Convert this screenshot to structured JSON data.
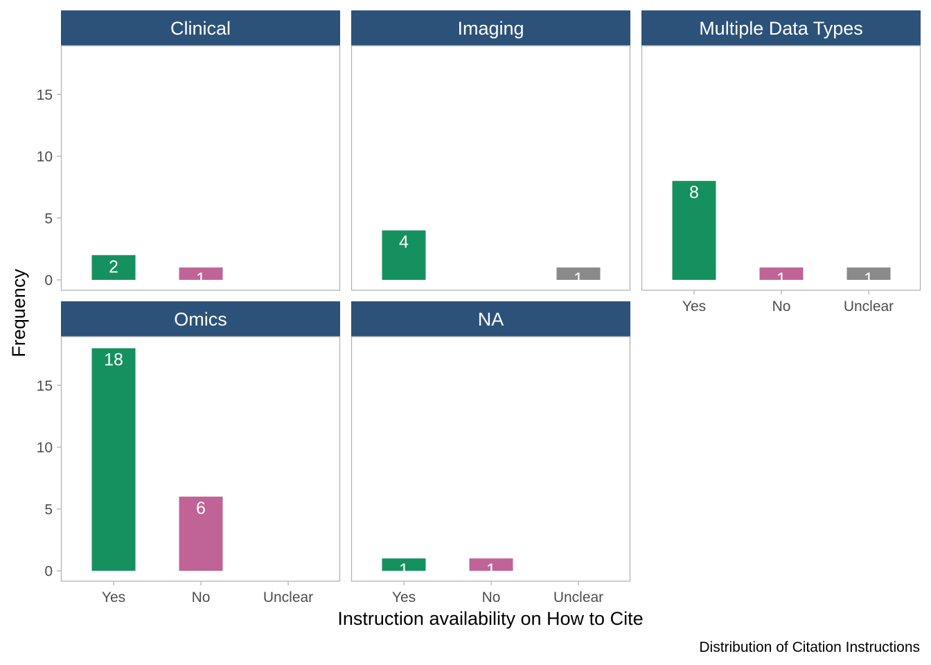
{
  "chart_data": {
    "type": "bar",
    "facets": [
      {
        "name": "Clinical",
        "values": [
          2,
          1,
          0
        ]
      },
      {
        "name": "Imaging",
        "values": [
          4,
          0,
          1
        ]
      },
      {
        "name": "Multiple Data Types",
        "values": [
          8,
          1,
          1
        ]
      },
      {
        "name": "Omics",
        "values": [
          18,
          6,
          0
        ]
      },
      {
        "name": "NA",
        "values": [
          1,
          1,
          0
        ]
      }
    ],
    "categories": [
      "Yes",
      "No",
      "Unclear"
    ],
    "category_colors": [
      "#15915f",
      "#c06497",
      "#8a8a8a"
    ],
    "xlabel": "Instruction availability on How to Cite",
    "ylabel": "Frequency",
    "caption": "Distribution of Citation Instructions",
    "ylim": [
      0,
      19
    ],
    "yticks": [
      0,
      5,
      10,
      15
    ],
    "strip_color": "#2c5279",
    "grid": false
  }
}
